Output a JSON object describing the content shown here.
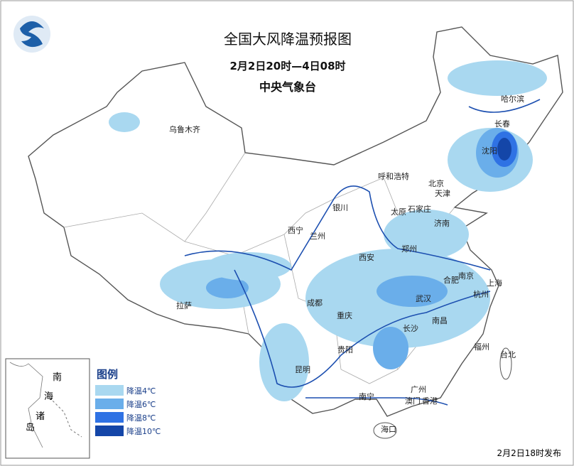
{
  "header": {
    "title": "全国大风降温预报图",
    "period": "2月2日20时—4日08时",
    "issuer": "中央气象台"
  },
  "cities": [
    {
      "name": "乌鲁木齐"
    },
    {
      "name": "哈尔滨"
    },
    {
      "name": "长春"
    },
    {
      "name": "沈阳"
    },
    {
      "name": "呼和浩特"
    },
    {
      "name": "北京"
    },
    {
      "name": "天津"
    },
    {
      "name": "银川"
    },
    {
      "name": "太原"
    },
    {
      "name": "石家庄"
    },
    {
      "name": "西宁"
    },
    {
      "name": "兰州"
    },
    {
      "name": "济南"
    },
    {
      "name": "西安"
    },
    {
      "name": "郑州"
    },
    {
      "name": "合肥"
    },
    {
      "name": "南京"
    },
    {
      "name": "上海"
    },
    {
      "name": "拉萨"
    },
    {
      "name": "成都"
    },
    {
      "name": "武汉"
    },
    {
      "name": "杭州"
    },
    {
      "name": "重庆"
    },
    {
      "name": "长沙"
    },
    {
      "name": "南昌"
    },
    {
      "name": "贵阳"
    },
    {
      "name": "福州"
    },
    {
      "name": "台北"
    },
    {
      "name": "昆明"
    },
    {
      "name": "南宁"
    },
    {
      "name": "广州"
    },
    {
      "name": "澳门"
    },
    {
      "name": "香港"
    },
    {
      "name": "海口"
    }
  ],
  "legend": {
    "title": "图例",
    "items": [
      {
        "label": "降温4℃",
        "color": "#a9d8f0"
      },
      {
        "label": "降温6℃",
        "color": "#6aaeea"
      },
      {
        "label": "降温8℃",
        "color": "#2f72e4"
      },
      {
        "label": "降温10℃",
        "color": "#1446a8"
      }
    ]
  },
  "inset": {
    "labels": [
      "南",
      "海",
      "诸",
      "岛"
    ]
  },
  "footer": "2月2日18时发布"
}
